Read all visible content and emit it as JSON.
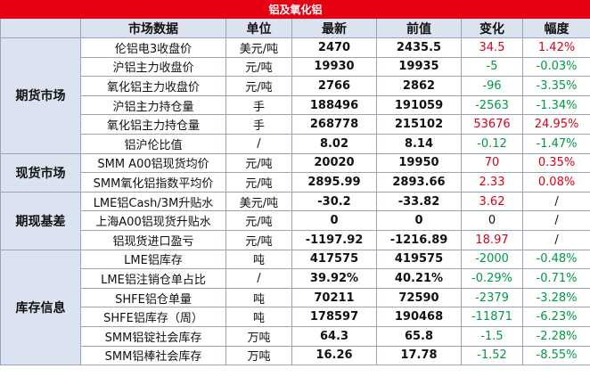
{
  "title": "铝及氧化铝",
  "colors": {
    "title_bg": "#e60012",
    "header_bg": "#dce3f0",
    "up": "#d9001b",
    "down": "#009944"
  },
  "headers": [
    "市场数据",
    "单位",
    "最新",
    "前值",
    "变化",
    "幅度"
  ],
  "groups": [
    {
      "category": "期货市场",
      "rows": [
        {
          "name": "伦铝电3收盘价",
          "unit": "美元/吨",
          "latest": "2470",
          "prev": "2435.5",
          "change": "34.5",
          "pct": "1.42%",
          "trend": "up"
        },
        {
          "name": "沪铝主力收盘价",
          "unit": "元/吨",
          "latest": "19930",
          "prev": "19935",
          "change": "-5",
          "pct": "-0.03%",
          "trend": "down"
        },
        {
          "name": "氧化铝主力收盘价",
          "unit": "元/吨",
          "latest": "2766",
          "prev": "2862",
          "change": "-96",
          "pct": "-3.35%",
          "trend": "down"
        },
        {
          "name": "沪铝主力持仓量",
          "unit": "手",
          "latest": "188496",
          "prev": "191059",
          "change": "-2563",
          "pct": "-1.34%",
          "trend": "down"
        },
        {
          "name": "氧化铝主力持仓量",
          "unit": "手",
          "latest": "268778",
          "prev": "215102",
          "change": "53676",
          "pct": "24.95%",
          "trend": "up"
        },
        {
          "name": "铝沪伦比值",
          "unit": "/",
          "latest": "8.02",
          "prev": "8.14",
          "change": "-0.12",
          "pct": "-1.47%",
          "trend": "down"
        }
      ]
    },
    {
      "category": "现货市场",
      "rows": [
        {
          "name": "SMM A00铝现货均价",
          "unit": "元/吨",
          "latest": "20020",
          "prev": "19950",
          "change": "70",
          "pct": "0.35%",
          "trend": "up"
        },
        {
          "name": "SMM氧化铝指数平均价",
          "unit": "元/吨",
          "latest": "2895.99",
          "prev": "2893.66",
          "change": "2.33",
          "pct": "0.08%",
          "trend": "up"
        }
      ]
    },
    {
      "category": "期现基差",
      "rows": [
        {
          "name": "LME铝Cash/3M升贴水",
          "unit": "美元/吨",
          "latest": "-30.2",
          "prev": "-33.82",
          "change": "3.62",
          "pct": "/",
          "trend": "up"
        },
        {
          "name": "上海A00铝现货升贴水",
          "unit": "元/吨",
          "latest": "0",
          "prev": "0",
          "change": "0",
          "pct": "/",
          "trend": "flat"
        },
        {
          "name": "铝现货进口盈亏",
          "unit": "元/吨",
          "latest": "-1197.92",
          "prev": "-1216.89",
          "change": "18.97",
          "pct": "/",
          "trend": "up"
        }
      ]
    },
    {
      "category": "库存信息",
      "rows": [
        {
          "name": "LME铝库存",
          "unit": "吨",
          "latest": "417575",
          "prev": "419575",
          "change": "-2000",
          "pct": "-0.48%",
          "trend": "down"
        },
        {
          "name": "LME铝注销仓单占比",
          "unit": "/",
          "latest": "39.92%",
          "prev": "40.21%",
          "change": "-0.29%",
          "pct": "-0.71%",
          "trend": "down"
        },
        {
          "name": "SHFE铝仓单量",
          "unit": "吨",
          "latest": "70211",
          "prev": "72590",
          "change": "-2379",
          "pct": "-3.28%",
          "trend": "down"
        },
        {
          "name": "SHFE铝库存（周）",
          "unit": "吨",
          "latest": "178597",
          "prev": "190468",
          "change": "-11871",
          "pct": "-6.23%",
          "trend": "down"
        },
        {
          "name": "SMM铝锭社会库存",
          "unit": "万吨",
          "latest": "64.3",
          "prev": "65.8",
          "change": "-1.5",
          "pct": "-2.28%",
          "trend": "down"
        },
        {
          "name": "SMM铝棒社会库存",
          "unit": "万吨",
          "latest": "16.26",
          "prev": "17.78",
          "change": "-1.52",
          "pct": "-8.55%",
          "trend": "down"
        }
      ]
    }
  ]
}
